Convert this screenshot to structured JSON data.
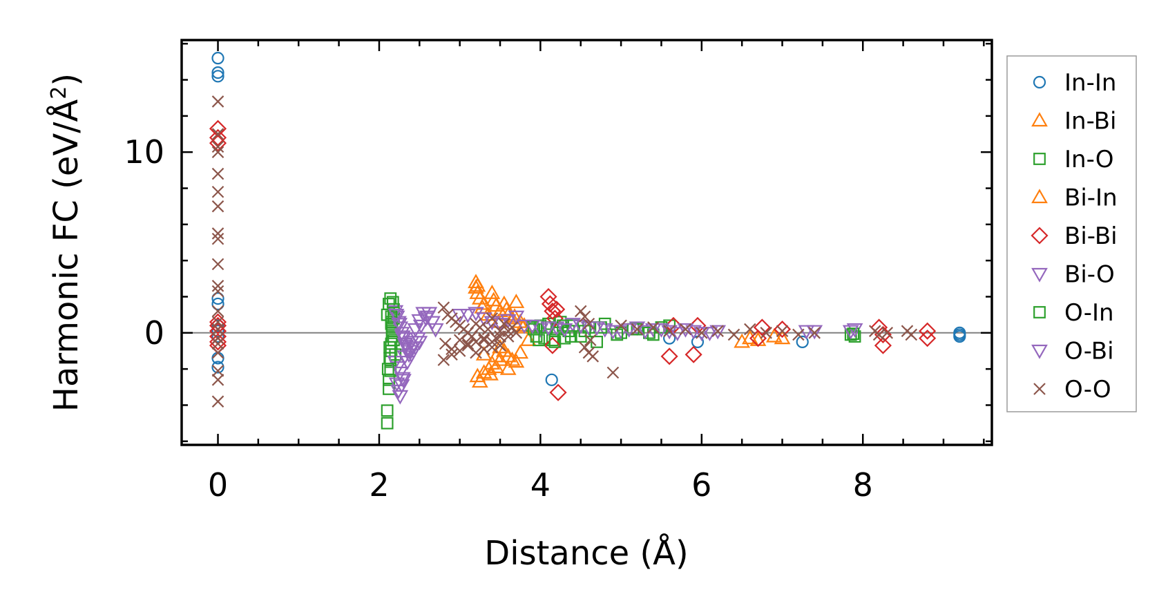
{
  "chart_data": {
    "type": "scatter",
    "title": "",
    "xlabel": "Distance (Å)",
    "ylabel_main": "Harmonic FC (eV/Å",
    "ylabel_sup": "2",
    "ylabel_close": ")",
    "xlim": [
      -0.45,
      9.6
    ],
    "ylim": [
      -6.2,
      16.2
    ],
    "xticks": [
      0,
      2,
      4,
      6,
      8
    ],
    "xtick_labels": [
      "0",
      "2",
      "4",
      "6",
      "8"
    ],
    "yticks": [
      0,
      10
    ],
    "ytick_labels": [
      "0",
      "10"
    ],
    "x_minor_step": 0.5,
    "y_minor_step": 2,
    "zero_line": true,
    "grid": false,
    "legend_position": "right, outside plot",
    "series": [
      {
        "name": "In-In",
        "marker": "circle",
        "color": "#1f77b4",
        "x": [
          0,
          0,
          0,
          0,
          0,
          0,
          0,
          0,
          0,
          0,
          4.14,
          5.6,
          5.95,
          7.25,
          9.2,
          9.2,
          9.2
        ],
        "y": [
          15.2,
          14.4,
          14.2,
          1.9,
          1.6,
          0.4,
          -0.2,
          -1.4,
          -1.9,
          0.1,
          -2.6,
          -0.3,
          -0.5,
          -0.5,
          -0.1,
          0.0,
          -0.2
        ]
      },
      {
        "name": "In-Bi",
        "marker": "triangle-up",
        "color": "#ff7f0e",
        "x": [
          3.2,
          3.2,
          3.22,
          3.25,
          3.3,
          3.4,
          3.42,
          3.45,
          3.5,
          3.55,
          3.6,
          3.65,
          3.7,
          3.75,
          3.8,
          3.85,
          3.4,
          3.45,
          3.5,
          3.55,
          3.6,
          3.65,
          3.7,
          3.22,
          3.25,
          3.3,
          3.38,
          3.45,
          6.5,
          6.7
        ],
        "y": [
          2.8,
          2.5,
          2.2,
          1.9,
          1.6,
          2.2,
          1.8,
          1.5,
          1.2,
          1.6,
          1.0,
          0.8,
          1.7,
          0.6,
          0.4,
          -0.4,
          -1.7,
          -1.3,
          -1.5,
          -1.0,
          -2.0,
          -1.5,
          -1.6,
          -2.4,
          -2.7,
          -2.2,
          -2.3,
          -1.9,
          -0.5,
          -0.4
        ]
      },
      {
        "name": "In-O",
        "marker": "square",
        "color": "#2ca02c",
        "x": [
          2.1,
          2.1,
          2.12,
          2.12,
          2.14,
          2.14,
          2.15,
          2.15,
          2.16,
          2.16,
          2.18,
          2.18,
          2.12,
          2.14,
          2.16,
          2.18,
          2.2,
          2.1,
          2.15,
          3.9,
          3.95,
          4.0,
          4.05,
          4.1,
          4.15,
          4.2,
          4.25,
          4.3,
          4.35,
          4.4,
          4.5,
          4.6,
          4.7,
          4.8,
          5.0,
          5.2,
          5.4,
          5.6,
          7.85,
          7.9
        ],
        "y": [
          -5.0,
          -4.3,
          -3.1,
          -2.6,
          -2.1,
          -1.6,
          -1.0,
          -0.6,
          -0.2,
          0.3,
          0.8,
          1.3,
          1.6,
          1.9,
          0.1,
          -0.4,
          -1.2,
          1.0,
          0.5,
          0.3,
          -0.2,
          0.4,
          -0.3,
          0.5,
          -0.4,
          0.2,
          0.6,
          -0.3,
          0.1,
          0.4,
          -0.2,
          0.3,
          -0.5,
          0.5,
          0.0,
          0.2,
          -0.1,
          0.4,
          -0.1,
          -0.2
        ]
      },
      {
        "name": "Bi-In",
        "marker": "triangle-up",
        "color": "#ff7f0e",
        "x": [
          3.22,
          3.28,
          3.35,
          3.48,
          3.58,
          3.68,
          3.78,
          3.3,
          3.36,
          3.5,
          3.6,
          3.75,
          6.6,
          6.9,
          7.0
        ],
        "y": [
          2.6,
          1.4,
          1.0,
          0.6,
          1.3,
          0.9,
          0.3,
          -1.2,
          -2.0,
          -0.8,
          -1.3,
          -1.1,
          -0.3,
          -0.2,
          -0.3
        ]
      },
      {
        "name": "Bi-Bi",
        "marker": "diamond",
        "color": "#d62728",
        "x": [
          0,
          0,
          0,
          0,
          0,
          0,
          0,
          0,
          0,
          4.1,
          4.12,
          4.15,
          4.18,
          4.2,
          4.15,
          4.22,
          5.6,
          5.65,
          5.9,
          5.95,
          6.7,
          6.75,
          7.0,
          8.2,
          8.25,
          8.25,
          8.8,
          8.8
        ],
        "y": [
          11.3,
          10.8,
          10.5,
          0.4,
          0.1,
          -0.2,
          -0.5,
          -0.7,
          0.6,
          2.0,
          1.6,
          1.2,
          0.8,
          1.3,
          -0.7,
          -3.3,
          -1.3,
          0.4,
          -1.2,
          0.4,
          -0.3,
          0.3,
          0.2,
          0.3,
          -0.1,
          -0.7,
          0.1,
          -0.3
        ]
      },
      {
        "name": "Bi-O",
        "marker": "triangle-down",
        "color": "#9467bd",
        "x": [
          2.2,
          2.22,
          2.24,
          2.26,
          2.28,
          2.3,
          2.32,
          2.35,
          2.38,
          2.4,
          2.45,
          2.5,
          2.55,
          2.6,
          2.2,
          2.23,
          2.26,
          2.29,
          2.32,
          2.35,
          2.4,
          2.45,
          2.5,
          2.22,
          2.24,
          2.26,
          2.28,
          2.3,
          3.0,
          3.2,
          3.4,
          3.6,
          3.8,
          4.0,
          4.2,
          4.4,
          4.6,
          4.8,
          5.0,
          5.2,
          5.4,
          5.6,
          5.8,
          6.0,
          6.2,
          7.4,
          7.9
        ],
        "y": [
          1.2,
          0.9,
          0.6,
          0.3,
          0.0,
          -0.3,
          -0.6,
          -0.9,
          -1.0,
          -0.5,
          0.2,
          0.7,
          1.1,
          0.9,
          -1.6,
          -1.9,
          -2.2,
          -2.5,
          -1.3,
          -1.6,
          -1.2,
          -0.8,
          -0.5,
          -2.8,
          -3.2,
          -3.5,
          -2.9,
          -2.6,
          1.0,
          1.1,
          0.6,
          0.7,
          0.4,
          0.2,
          0.3,
          0.5,
          0.3,
          0.2,
          0.1,
          0.3,
          0.2,
          0.1,
          0.2,
          0.0,
          0.1,
          0.1,
          0.2
        ]
      },
      {
        "name": "O-In",
        "marker": "square",
        "color": "#2ca02c",
        "x": [
          2.11,
          2.13,
          2.15,
          2.17,
          2.13,
          2.15,
          3.92,
          3.98,
          4.08,
          4.18,
          4.28,
          4.38,
          4.55,
          4.75,
          4.95,
          5.15,
          5.35,
          5.5,
          7.88
        ],
        "y": [
          -2.0,
          -1.4,
          0.9,
          1.7,
          -0.8,
          0.6,
          0.2,
          -0.4,
          0.3,
          -0.5,
          0.4,
          -0.2,
          0.1,
          0.3,
          -0.1,
          0.2,
          0.0,
          0.3,
          -0.05
        ]
      },
      {
        "name": "O-Bi",
        "marker": "triangle-down",
        "color": "#9467bd",
        "x": [
          2.21,
          2.25,
          2.29,
          2.33,
          2.37,
          2.42,
          2.48,
          2.52,
          2.58,
          2.62,
          2.66,
          2.7,
          3.1,
          3.3,
          3.5,
          3.7,
          3.9,
          4.1,
          4.3,
          4.5,
          4.7,
          4.9,
          5.1,
          5.3,
          5.5,
          5.7,
          5.9,
          6.1,
          7.3,
          7.85
        ],
        "y": [
          1.0,
          0.5,
          -0.2,
          -0.7,
          -1.2,
          -0.8,
          -0.3,
          0.4,
          0.8,
          1.1,
          0.6,
          0.2,
          1.0,
          0.8,
          0.5,
          0.9,
          0.4,
          0.3,
          0.2,
          0.4,
          0.3,
          0.1,
          0.2,
          0.1,
          0.2,
          0.0,
          0.1,
          0.0,
          0.1,
          0.1
        ]
      },
      {
        "name": "O-O",
        "marker": "x",
        "color": "#8c564b",
        "x": [
          0,
          0,
          0,
          0,
          0,
          0,
          0,
          0,
          0,
          0,
          0,
          0,
          0,
          0,
          0,
          0,
          0,
          0,
          0,
          0,
          0,
          2.8,
          2.85,
          2.9,
          2.95,
          3.0,
          3.05,
          3.1,
          3.15,
          3.2,
          3.25,
          3.3,
          3.35,
          3.4,
          3.45,
          3.5,
          3.55,
          3.6,
          3.65,
          3.7,
          2.82,
          2.9,
          3.0,
          3.1,
          3.2,
          3.3,
          3.4,
          3.5,
          3.6,
          2.8,
          2.9,
          3.0,
          3.1,
          3.2,
          3.3,
          3.4,
          3.5,
          4.5,
          4.55,
          4.6,
          4.62,
          4.55,
          4.6,
          4.65,
          4.9,
          5.0,
          5.2,
          5.4,
          5.6,
          5.8,
          6.0,
          6.2,
          6.4,
          6.6,
          6.8,
          7.0,
          7.2,
          7.4,
          8.15,
          8.2,
          8.3,
          8.55,
          8.6
        ],
        "y": [
          12.8,
          11.0,
          10.3,
          10.0,
          8.8,
          7.8,
          7.0,
          5.5,
          5.2,
          3.8,
          2.6,
          2.3,
          1.2,
          0.6,
          0.2,
          -0.3,
          -0.6,
          -1.1,
          -2.1,
          -2.6,
          -3.8,
          1.4,
          1.0,
          0.8,
          0.6,
          0.4,
          0.2,
          0.0,
          -0.2,
          0.5,
          0.3,
          -0.4,
          0.2,
          0.8,
          -0.3,
          0.1,
          0.5,
          -0.2,
          0.3,
          0.0,
          -0.6,
          -0.9,
          -0.4,
          -0.7,
          -0.5,
          -0.3,
          -0.8,
          -0.2,
          0.1,
          -1.5,
          -1.2,
          -1.0,
          -0.6,
          -1.1,
          -0.9,
          -0.5,
          -0.7,
          1.2,
          0.9,
          0.5,
          -0.4,
          -0.8,
          -1.1,
          -1.3,
          -2.2,
          0.4,
          0.2,
          0.3,
          0.1,
          0.2,
          0.0,
          0.1,
          -0.1,
          0.2,
          0.0,
          0.1,
          -0.1,
          0.0,
          0.1,
          -0.1,
          0.0,
          0.1,
          -0.1
        ]
      }
    ]
  }
}
